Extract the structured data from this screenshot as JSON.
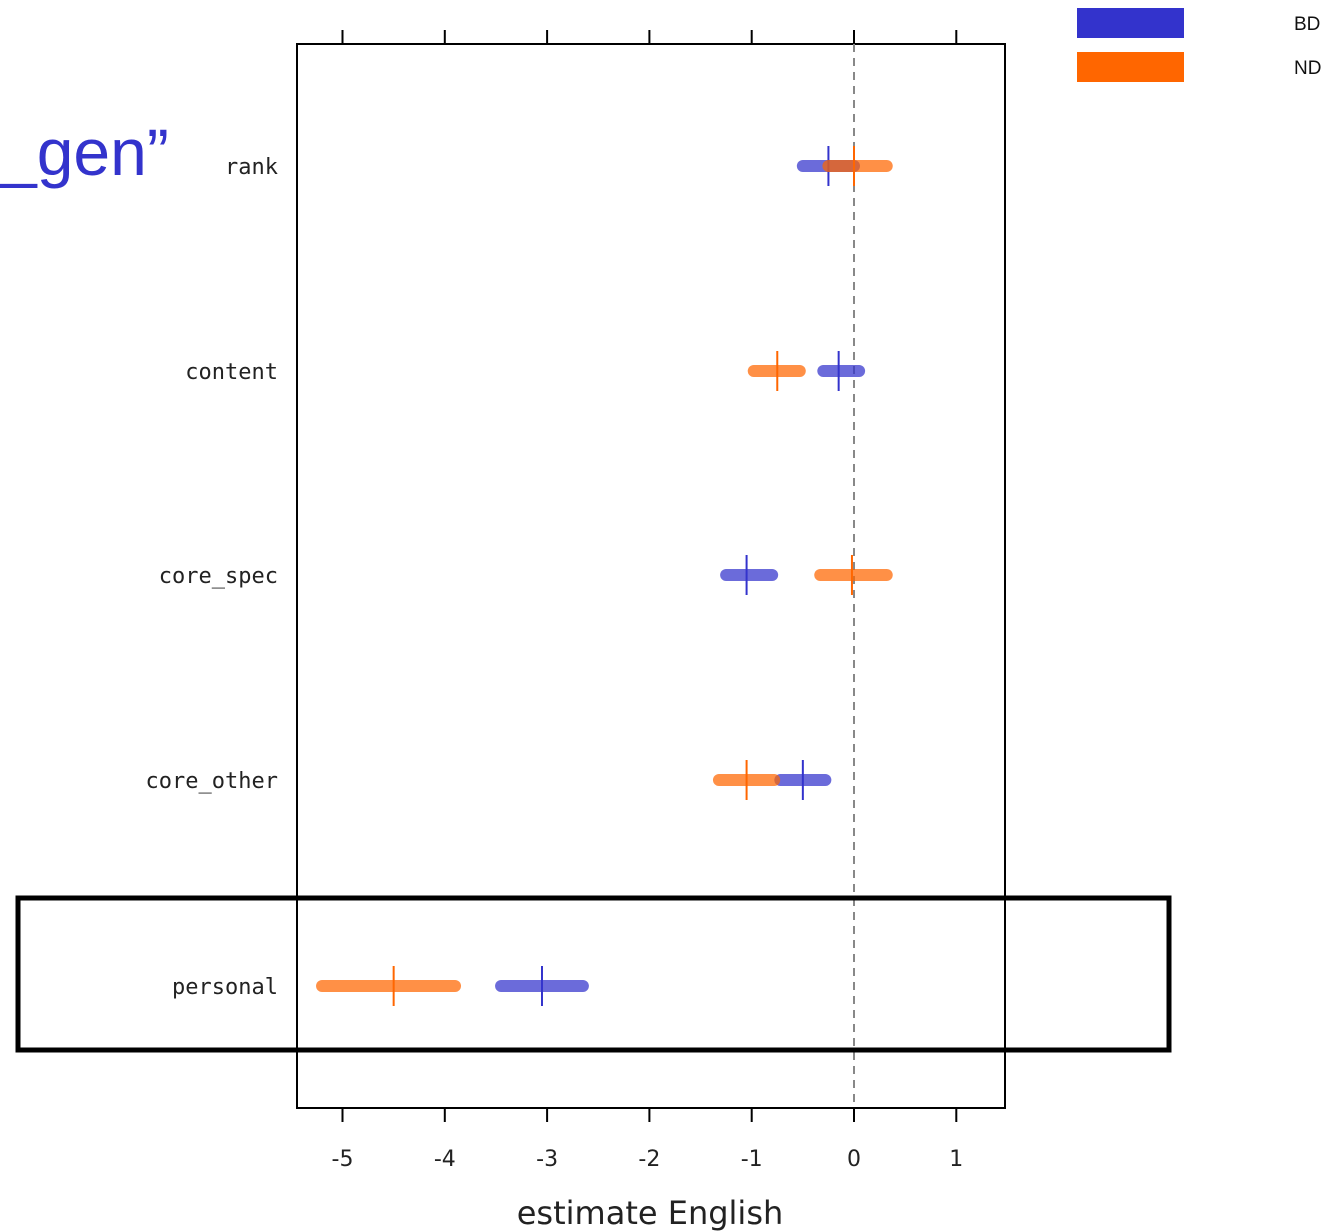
{
  "slide_title": "_gen”",
  "colors": {
    "BD": "#3333cc",
    "ND": "#ff6600",
    "title": "#3333cc",
    "highlight": "#000000"
  },
  "legend": [
    {
      "name": "BD",
      "color": "#3333cc"
    },
    {
      "name": "ND",
      "color": "#ff6600"
    }
  ],
  "highlighted_category": "personal",
  "chart_data": {
    "type": "scatter",
    "xlabel": "estimate English",
    "ylabel": "",
    "xlim": [
      -5.5,
      1.5
    ],
    "xticks": [
      -5,
      -4,
      -3,
      -2,
      -1,
      0,
      1
    ],
    "xtick_labels": [
      "-5",
      "-4",
      "-3",
      "-2",
      "-1",
      "0",
      "1"
    ],
    "reference_line": 0,
    "categories": [
      "rank",
      "content",
      "core_spec",
      "core_other",
      "personal"
    ],
    "series": [
      {
        "name": "BD",
        "points": [
          {
            "category": "rank",
            "estimate": -0.25,
            "low": -0.5,
            "high": 0.0
          },
          {
            "category": "content",
            "estimate": -0.15,
            "low": -0.3,
            "high": 0.05
          },
          {
            "category": "core_spec",
            "estimate": -1.05,
            "low": -1.25,
            "high": -0.8
          },
          {
            "category": "core_other",
            "estimate": -0.5,
            "low": -0.72,
            "high": -0.28
          },
          {
            "category": "personal",
            "estimate": -3.05,
            "low": -3.45,
            "high": -2.65
          }
        ]
      },
      {
        "name": "ND",
        "points": [
          {
            "category": "rank",
            "estimate": 0.0,
            "low": -0.25,
            "high": 0.32
          },
          {
            "category": "content",
            "estimate": -0.75,
            "low": -0.98,
            "high": -0.53
          },
          {
            "category": "core_spec",
            "estimate": -0.02,
            "low": -0.33,
            "high": 0.32
          },
          {
            "category": "core_other",
            "estimate": -1.05,
            "low": -1.32,
            "high": -0.78
          },
          {
            "category": "personal",
            "estimate": -4.5,
            "low": -5.2,
            "high": -3.9
          }
        ]
      }
    ]
  }
}
